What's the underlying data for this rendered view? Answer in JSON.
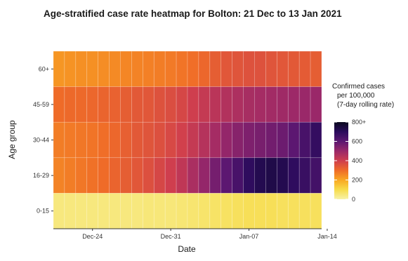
{
  "chart_data": {
    "type": "heatmap",
    "title": "Age-stratified case rate heatmap for Bolton: 21 Dec to 13 Jan 2021",
    "xlabel": "Date",
    "ylabel": "Age group",
    "x": [
      "2020-12-21",
      "2020-12-22",
      "2020-12-23",
      "2020-12-24",
      "2020-12-25",
      "2020-12-26",
      "2020-12-27",
      "2020-12-28",
      "2020-12-29",
      "2020-12-30",
      "2020-12-31",
      "2021-01-01",
      "2021-01-02",
      "2021-01-03",
      "2021-01-04",
      "2021-01-05",
      "2021-01-06",
      "2021-01-07",
      "2021-01-08",
      "2021-01-09",
      "2021-01-10",
      "2021-01-11",
      "2021-01-12",
      "2021-01-13"
    ],
    "x_ticks": [
      "Dec-24",
      "Dec-31",
      "Jan-07",
      "Jan-14"
    ],
    "y": [
      "60+",
      "45-59",
      "30-44",
      "16-29",
      "0-15"
    ],
    "values": [
      [
        230,
        235,
        240,
        240,
        245,
        250,
        255,
        260,
        265,
        270,
        275,
        285,
        295,
        310,
        330,
        345,
        350,
        355,
        355,
        350,
        345,
        340,
        335,
        330
      ],
      [
        300,
        305,
        305,
        310,
        315,
        320,
        330,
        340,
        345,
        355,
        365,
        380,
        400,
        420,
        440,
        455,
        465,
        475,
        480,
        485,
        490,
        495,
        500,
        500
      ],
      [
        270,
        275,
        280,
        285,
        295,
        310,
        325,
        340,
        350,
        360,
        375,
        395,
        420,
        450,
        480,
        510,
        530,
        545,
        555,
        565,
        575,
        600,
        640,
        680
      ],
      [
        260,
        270,
        280,
        290,
        300,
        315,
        330,
        345,
        360,
        380,
        400,
        430,
        470,
        510,
        560,
        600,
        640,
        690,
        720,
        730,
        720,
        690,
        670,
        650
      ],
      [
        45,
        45,
        45,
        45,
        45,
        45,
        45,
        45,
        50,
        50,
        50,
        55,
        60,
        65,
        70,
        75,
        80,
        85,
        85,
        85,
        80,
        80,
        80,
        80
      ]
    ],
    "color_scale": {
      "name": "inferno (reversed)",
      "min": 0,
      "max": 800,
      "legend_title": [
        "Confirmed cases",
        "per 100,000",
        "(7-day rolling rate)"
      ],
      "legend_ticks": [
        "0",
        "200",
        "400",
        "600",
        "800+"
      ],
      "stops": [
        "#f7f2a8",
        "#f7dc4a",
        "#f9a822",
        "#ef6b28",
        "#cf3e4e",
        "#9a2869",
        "#5c1771",
        "#2a0b5c",
        "#0a0a1e"
      ]
    },
    "grid": true,
    "legend_position": "right"
  }
}
